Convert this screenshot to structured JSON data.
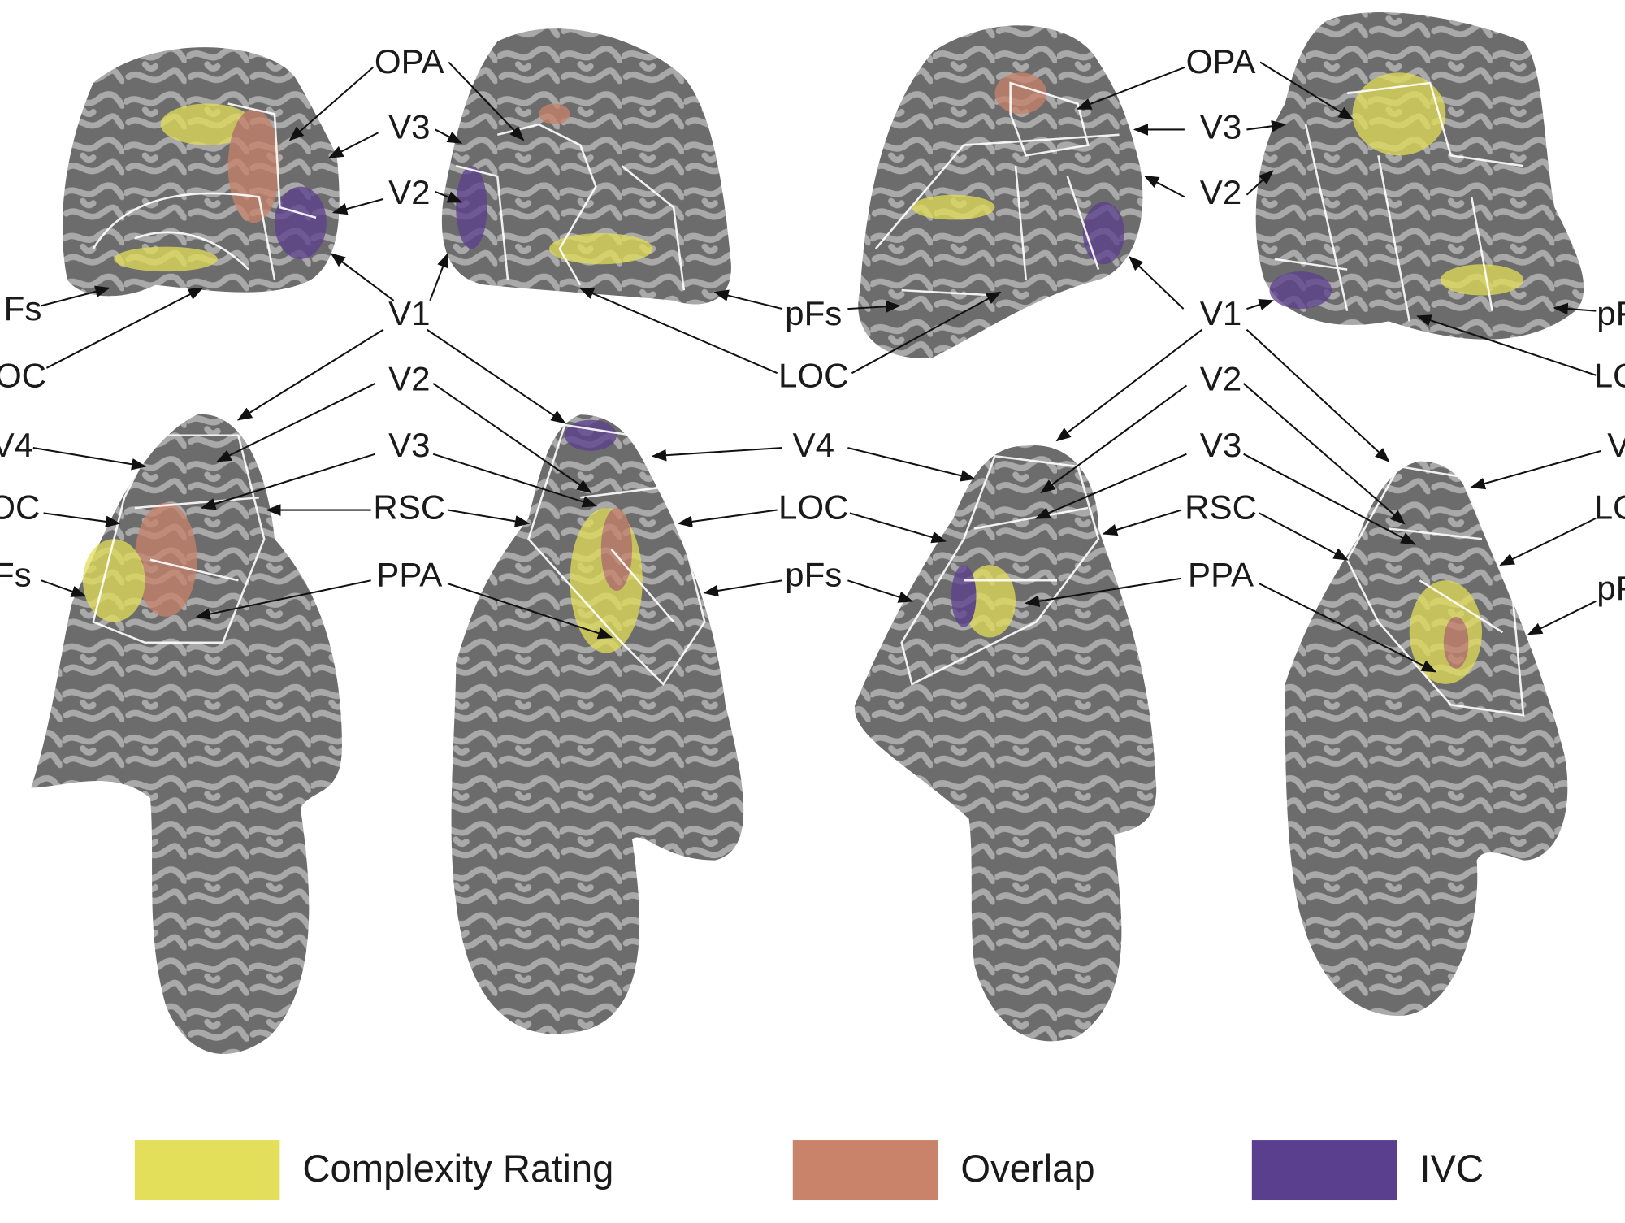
{
  "labels": [
    "Fs",
    "OC",
    "OPA",
    "V3",
    "V2",
    "V1",
    "pFs",
    "LOC",
    "V2",
    "V4",
    "V3",
    "V4",
    "OC",
    "RSC",
    "LOC",
    "Fs",
    "PPA",
    "pFs",
    "OPA",
    "V3",
    "V2",
    "V1",
    "pF",
    "LO",
    "V2",
    "V3",
    "V",
    "RSC",
    "LO",
    "PPA",
    "pF"
  ],
  "legend": {
    "items": [
      {
        "name": "Complexity Rating",
        "color": "#e3df5a"
      },
      {
        "name": "Overlap",
        "color": "#c8836a"
      },
      {
        "name": "IVC",
        "color": "#5b3f8f"
      }
    ]
  }
}
